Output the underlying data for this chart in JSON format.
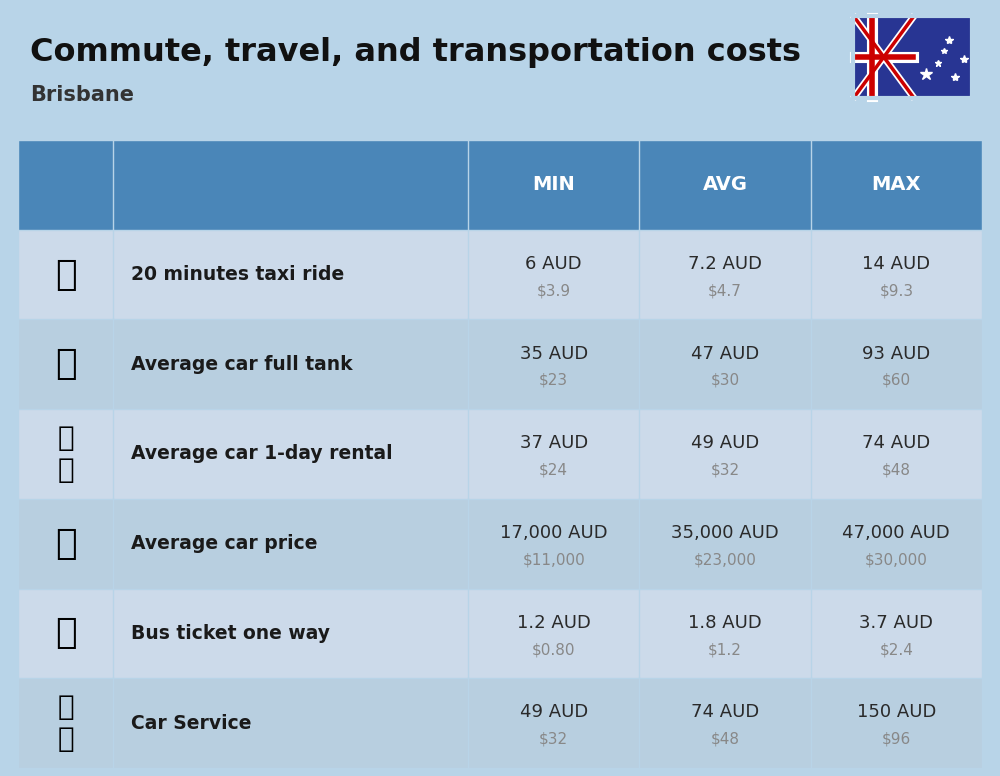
{
  "title": "Commute, travel, and transportation costs",
  "subtitle": "Brisbane",
  "background_color": "#b8d4e8",
  "header_color": "#4a86b8",
  "row_color_light": "#ccdaea",
  "row_color_dark": "#b8cfe0",
  "header_text_color": "#ffffff",
  "label_text_color": "#1a1a1a",
  "value_text_color": "#2a2a2a",
  "usd_text_color": "#888888",
  "col_headers": [
    "MIN",
    "AVG",
    "MAX"
  ],
  "rows": [
    {
      "label": "20 minutes taxi ride",
      "min_aud": "6 AUD",
      "min_usd": "$3.9",
      "avg_aud": "7.2 AUD",
      "avg_usd": "$4.7",
      "max_aud": "14 AUD",
      "max_usd": "$9.3"
    },
    {
      "label": "Average car full tank",
      "min_aud": "35 AUD",
      "min_usd": "$23",
      "avg_aud": "47 AUD",
      "avg_usd": "$30",
      "max_aud": "93 AUD",
      "max_usd": "$60"
    },
    {
      "label": "Average car 1-day rental",
      "min_aud": "37 AUD",
      "min_usd": "$24",
      "avg_aud": "49 AUD",
      "avg_usd": "$32",
      "max_aud": "74 AUD",
      "max_usd": "$48"
    },
    {
      "label": "Average car price",
      "min_aud": "17,000 AUD",
      "min_usd": "$11,000",
      "avg_aud": "35,000 AUD",
      "avg_usd": "$23,000",
      "max_aud": "47,000 AUD",
      "max_usd": "$30,000"
    },
    {
      "label": "Bus ticket one way",
      "min_aud": "1.2 AUD",
      "min_usd": "$0.80",
      "avg_aud": "1.8 AUD",
      "avg_usd": "$1.2",
      "max_aud": "3.7 AUD",
      "max_usd": "$2.4"
    },
    {
      "label": "Car Service",
      "min_aud": "49 AUD",
      "min_usd": "$32",
      "avg_aud": "74 AUD",
      "avg_usd": "$48",
      "max_aud": "150 AUD",
      "max_usd": "$96"
    }
  ]
}
